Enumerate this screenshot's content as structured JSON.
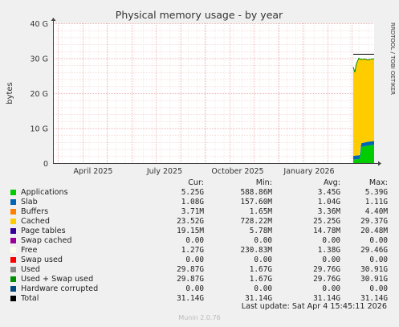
{
  "chart_data": {
    "type": "area",
    "title": "Physical memory usage - by year",
    "ylabel": "bytes",
    "side_label": "RRDTOOL / TOBI OETIKER",
    "ylim": [
      0,
      40
    ],
    "yunit": "G",
    "yticks": [
      "0",
      "10 G",
      "20 G",
      "30 G",
      "40 G"
    ],
    "ytick_values": [
      0,
      10,
      20,
      30,
      40
    ],
    "xticks": [
      "April 2025",
      "July 2025",
      "October 2025",
      "January 2026"
    ],
    "grid": true,
    "stack": [
      {
        "name": "Applications",
        "color": "#00cc00",
        "values": [
          5.25
        ]
      },
      {
        "name": "Slab",
        "color": "#0066b3",
        "values": [
          1.08
        ]
      },
      {
        "name": "Cached",
        "color": "#ffcc00",
        "values": [
          23.52
        ]
      }
    ],
    "total_line_value": 31.14,
    "legend_headers": [
      "Cur:",
      "Min:",
      "Avg:",
      "Max:"
    ],
    "legend": [
      {
        "name": "Applications",
        "color": "#00cc00",
        "cur": "5.25G",
        "min": "588.86M",
        "avg": "3.45G",
        "max": "5.39G"
      },
      {
        "name": "Slab",
        "color": "#0066b3",
        "cur": "1.08G",
        "min": "157.60M",
        "avg": "1.04G",
        "max": "1.11G"
      },
      {
        "name": "Buffers",
        "color": "#ff8000",
        "cur": "3.71M",
        "min": "1.65M",
        "avg": "3.36M",
        "max": "4.40M"
      },
      {
        "name": "Cached",
        "color": "#ffcc00",
        "cur": "23.52G",
        "min": "728.22M",
        "avg": "25.25G",
        "max": "29.37G"
      },
      {
        "name": "Page tables",
        "color": "#330099",
        "cur": "19.15M",
        "min": "5.78M",
        "avg": "14.78M",
        "max": "20.48M"
      },
      {
        "name": "Swap cached",
        "color": "#990099",
        "cur": "0.00",
        "min": "0.00",
        "avg": "0.00",
        "max": "0.00"
      },
      {
        "name": "Free",
        "color": "#ffffee",
        "cur": "1.27G",
        "min": "230.83M",
        "avg": "1.38G",
        "max": "29.46G"
      },
      {
        "name": "Swap used",
        "color": "#ff0000",
        "cur": "0.00",
        "min": "0.00",
        "avg": "0.00",
        "max": "0.00"
      },
      {
        "name": "Used",
        "color": "#888888",
        "cur": "29.87G",
        "min": "1.67G",
        "avg": "29.76G",
        "max": "30.91G"
      },
      {
        "name": "Used + Swap used",
        "color": "#008f00",
        "cur": "29.87G",
        "min": "1.67G",
        "avg": "29.76G",
        "max": "30.91G"
      },
      {
        "name": "Hardware corrupted",
        "color": "#00487d",
        "cur": "0.00",
        "min": "0.00",
        "avg": "0.00",
        "max": "0.00"
      },
      {
        "name": "Total",
        "color": "#000000",
        "cur": "31.14G",
        "min": "31.14G",
        "avg": "31.14G",
        "max": "31.14G"
      }
    ]
  },
  "footer": {
    "last_update": "Last update: Sat Apr  4 15:45:11 2026",
    "munin_version": "Munin 2.0.76"
  }
}
